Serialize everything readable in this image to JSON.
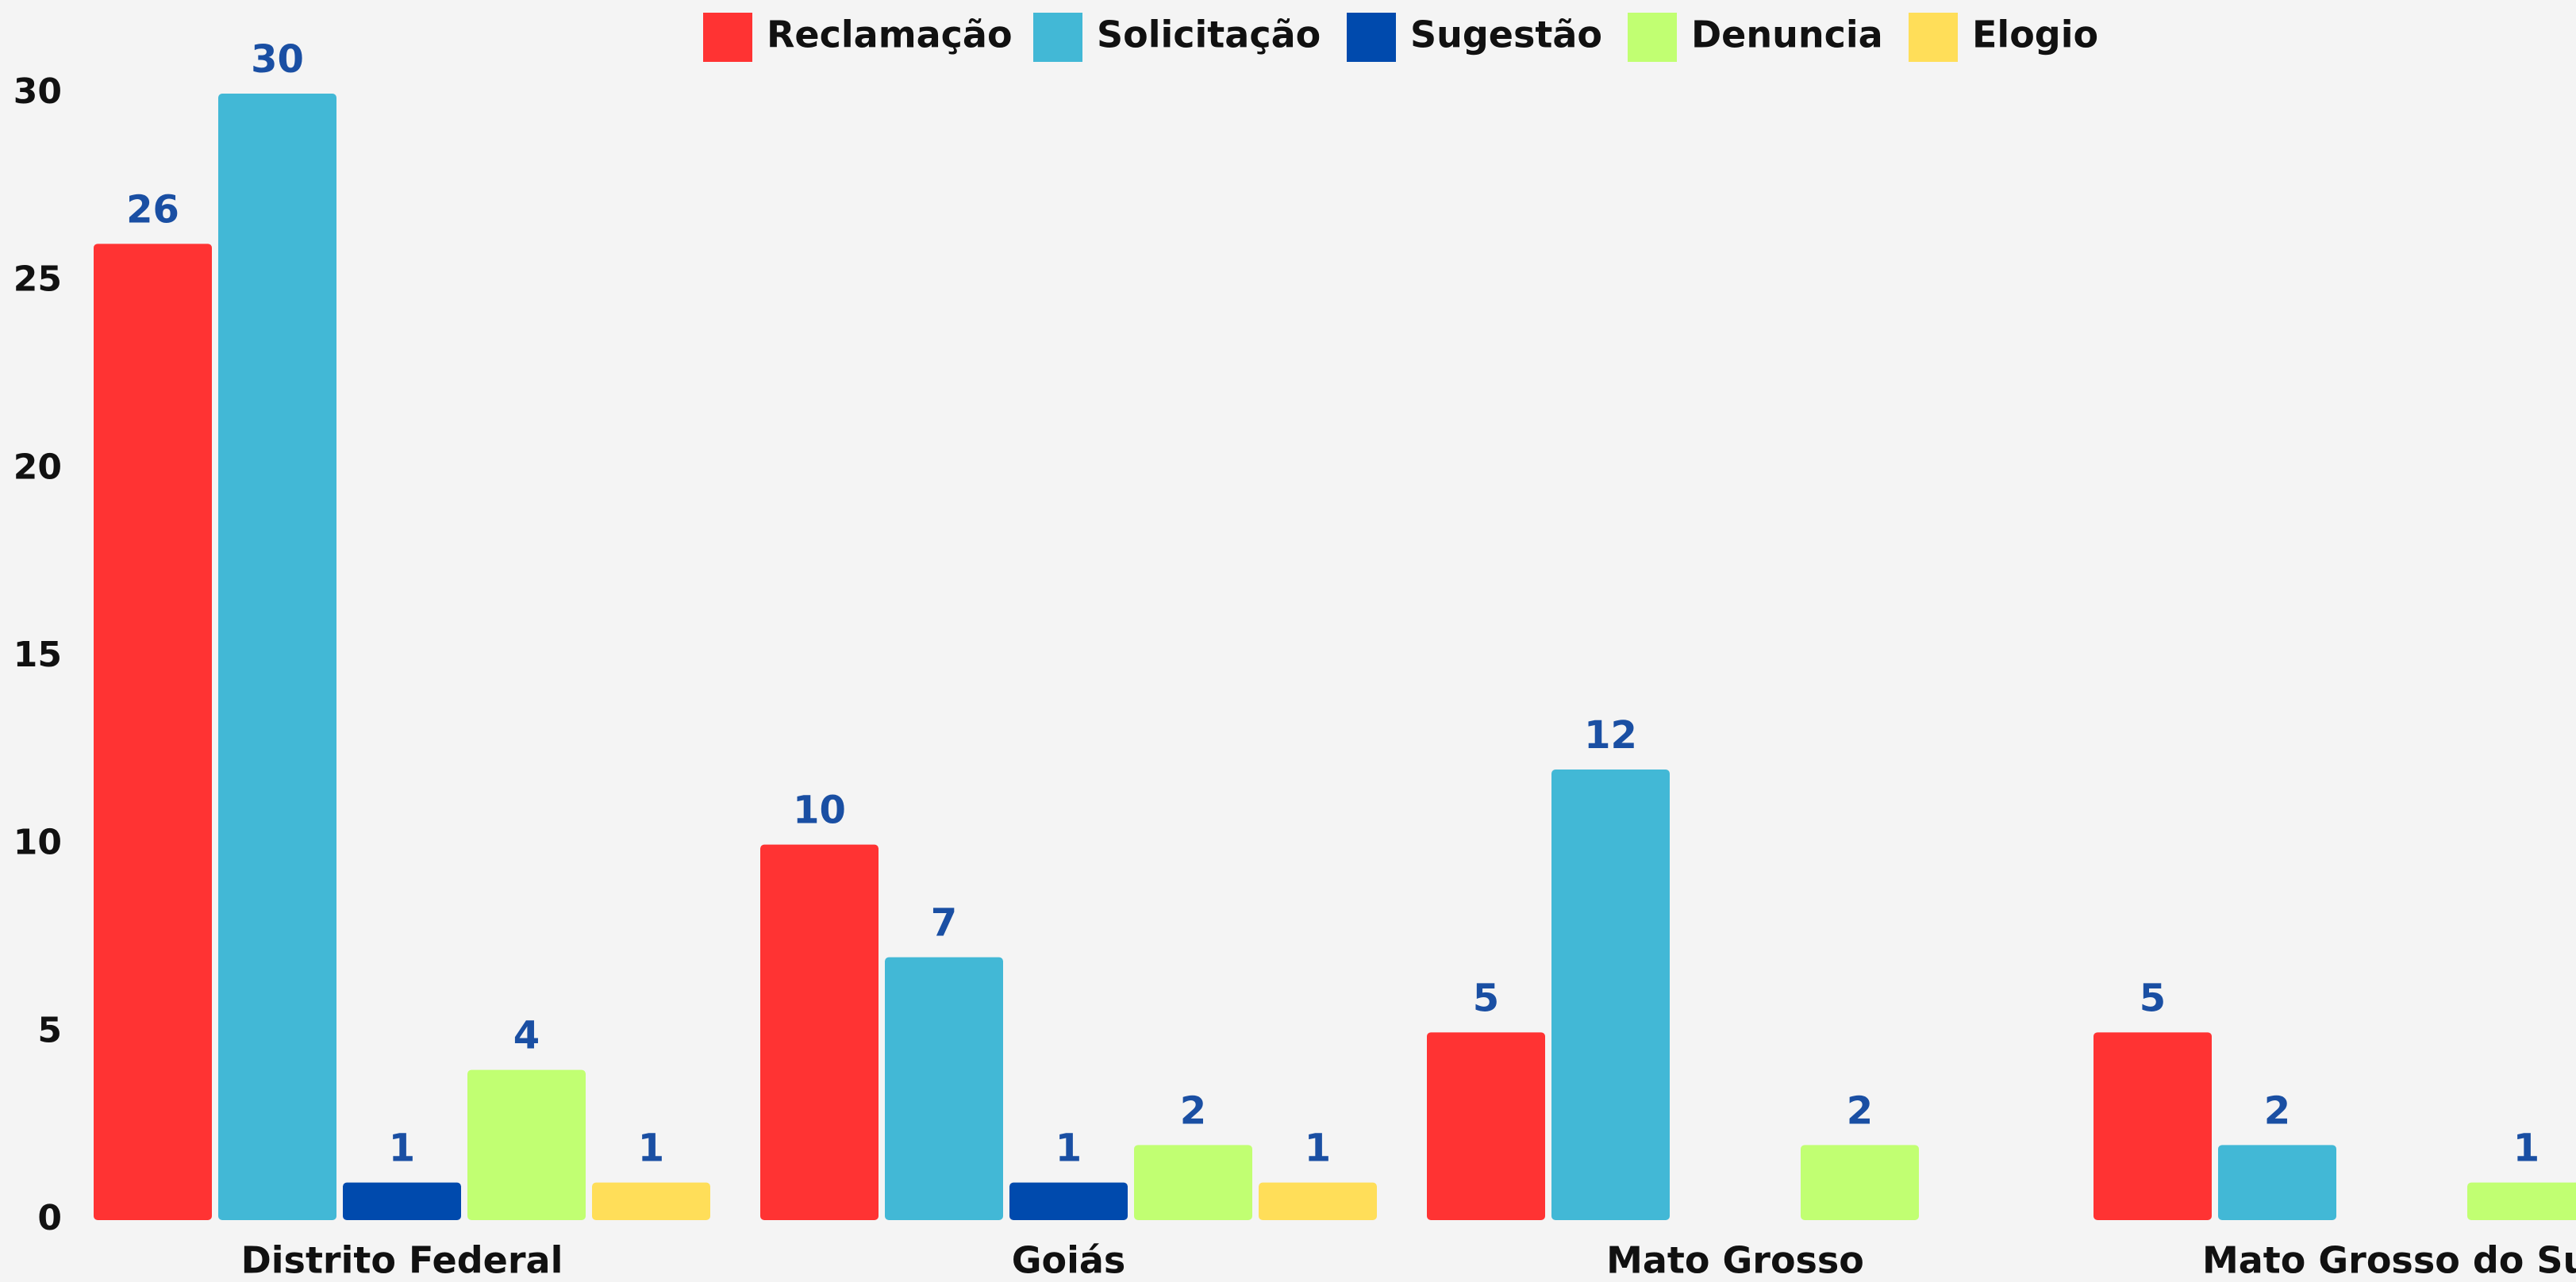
{
  "chart_data": {
    "type": "bar",
    "categories": [
      "Distrito Federal",
      "Goiás",
      "Mato Grosso",
      "Mato Grosso do Sul"
    ],
    "series": [
      {
        "name": "Reclamação",
        "color": "#ff3333",
        "values": [
          26,
          10,
          5,
          5
        ]
      },
      {
        "name": "Solicitação",
        "color": "#42b8d6",
        "values": [
          30,
          7,
          12,
          2
        ]
      },
      {
        "name": "Sugestão",
        "color": "#004aad",
        "values": [
          1,
          1,
          null,
          null
        ]
      },
      {
        "name": "Denuncia",
        "color": "#c1ff72",
        "values": [
          4,
          2,
          2,
          1
        ]
      },
      {
        "name": "Elogio",
        "color": "#ffde59",
        "values": [
          1,
          1,
          null,
          null
        ]
      }
    ],
    "ylim": [
      0,
      30
    ],
    "yticks": [
      0,
      5,
      10,
      15,
      20,
      25,
      30
    ],
    "legend": "top"
  }
}
